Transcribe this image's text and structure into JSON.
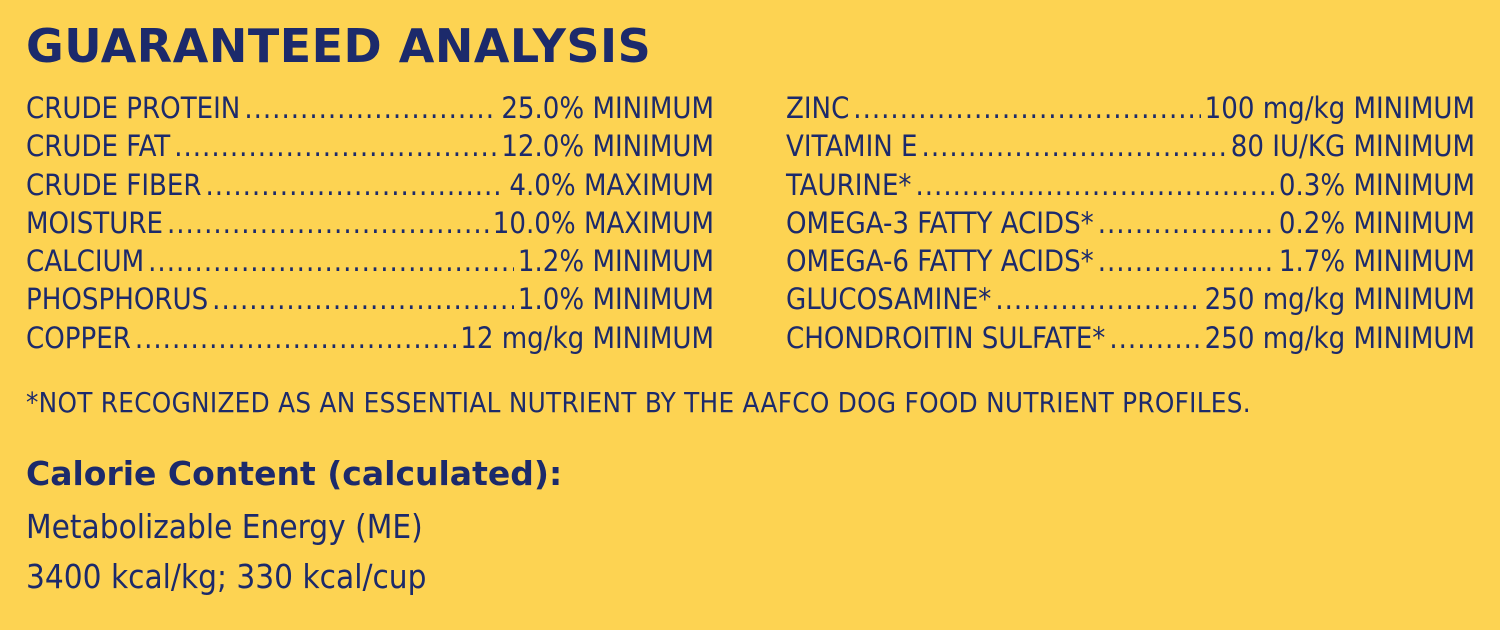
{
  "colors": {
    "background": "#fdd352",
    "text": "#1c2a6b"
  },
  "title": "GUARANTEED ANALYSIS",
  "left_column": [
    {
      "label": "CRUDE PROTEIN",
      "value": "25.0% MINIMUM"
    },
    {
      "label": "CRUDE FAT",
      "value": "12.0% MINIMUM"
    },
    {
      "label": "CRUDE FIBER",
      "value": "4.0% MAXIMUM"
    },
    {
      "label": "MOISTURE",
      "value": "10.0% MAXIMUM"
    },
    {
      "label": "CALCIUM",
      "value": "1.2% MINIMUM"
    },
    {
      "label": "PHOSPHORUS",
      "value": "1.0% MINIMUM"
    },
    {
      "label": "COPPER",
      "value": "12 mg/kg MINIMUM"
    }
  ],
  "right_column": [
    {
      "label": "ZINC",
      "value": "100 mg/kg MINIMUM"
    },
    {
      "label": "VITAMIN E",
      "value": "80 IU/KG MINIMUM"
    },
    {
      "label": "TAURINE*",
      "value": "0.3% MINIMUM"
    },
    {
      "label": "OMEGA-3 FATTY ACIDS*",
      "value": "0.2% MINIMUM"
    },
    {
      "label": "OMEGA-6 FATTY ACIDS*",
      "value": "1.7% MINIMUM"
    },
    {
      "label": "GLUCOSAMINE*",
      "value": "250 mg/kg MINIMUM"
    },
    {
      "label": "CHONDROITIN SULFATE*",
      "value": "250 mg/kg MINIMUM"
    }
  ],
  "footnote": "*NOT RECOGNIZED AS AN ESSENTIAL NUTRIENT BY THE AAFCO DOG FOOD NUTRIENT PROFILES.",
  "calorie": {
    "heading": "Calorie Content (calculated):",
    "line1": "Metabolizable Energy (ME)",
    "line2": "3400 kcal/kg; 330 kcal/cup"
  }
}
